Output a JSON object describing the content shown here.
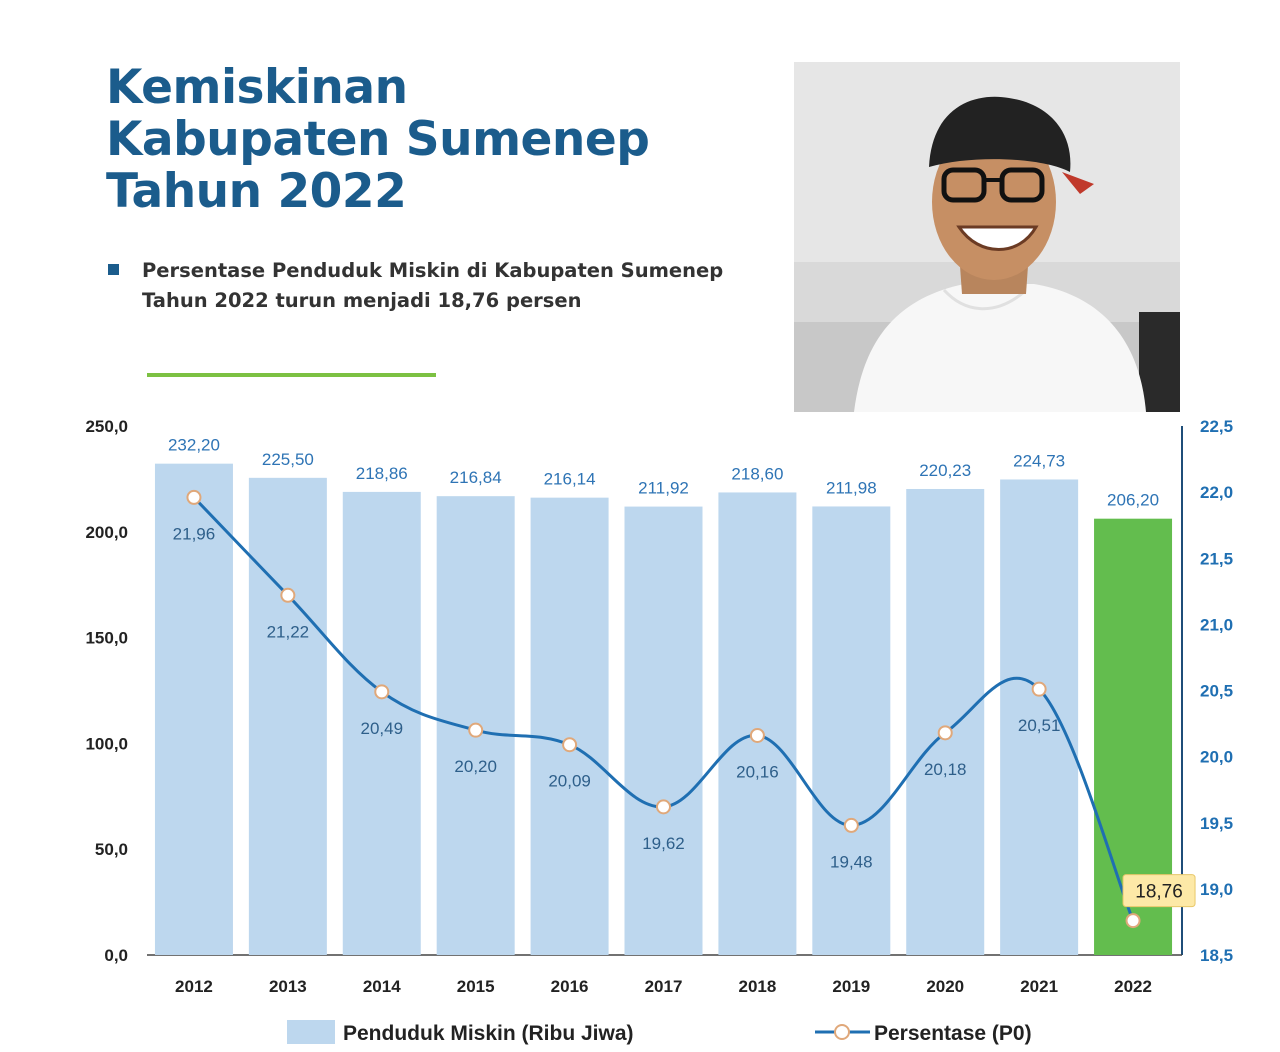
{
  "title_lines": [
    "Kemiskinan",
    "Kabupaten Sumenep",
    "Tahun 2022"
  ],
  "note": "Persentase Penduduk Miskin di Kabupaten Sumenep Tahun 2022 turun menjadi 18,76 persen",
  "colors": {
    "title": "#1b5c8c",
    "bar": "#bdd7ee",
    "bar_highlight": "#63bd4e",
    "line": "#1f6fb2",
    "value_label": "#2e74b5",
    "highlight_label_bg": "#fde9a7",
    "green_rule": "#7cc142"
  },
  "chart_data": {
    "type": "bar",
    "categories": [
      "2012",
      "2013",
      "2014",
      "2015",
      "2016",
      "2017",
      "2018",
      "2019",
      "2020",
      "2021",
      "2022"
    ],
    "series": [
      {
        "name": "Penduduk Miskin (Ribu Jiwa)",
        "type": "bar",
        "axis": "left",
        "values": [
          232.2,
          225.5,
          218.86,
          216.84,
          216.14,
          211.92,
          218.6,
          211.98,
          220.23,
          224.73,
          206.2
        ],
        "labels": [
          "232,20",
          "225,50",
          "218,86",
          "216,84",
          "216,14",
          "211,92",
          "218,60",
          "211,98",
          "220,23",
          "224,73",
          "206,20"
        ],
        "highlight_index": 10
      },
      {
        "name": "Persentase (P0)",
        "type": "line",
        "axis": "right",
        "values": [
          21.96,
          21.22,
          20.49,
          20.2,
          20.09,
          19.62,
          20.16,
          19.48,
          20.18,
          20.51,
          18.76
        ],
        "labels": [
          "21,96",
          "21,22",
          "20,49",
          "20,20",
          "20,09",
          "19,62",
          "20,16",
          "19,48",
          "20,18",
          "20,51",
          "18,76"
        ],
        "highlight_index": 10
      }
    ],
    "y_left": {
      "range": [
        0,
        250
      ],
      "ticks": [
        "0,0",
        "50,0",
        "100,0",
        "150,0",
        "200,0",
        "250,0"
      ]
    },
    "y_right": {
      "range": [
        18.5,
        22.5
      ],
      "ticks": [
        "18,5",
        "19,0",
        "19,5",
        "20,0",
        "20,5",
        "21,0",
        "21,5",
        "22,0",
        "22,5"
      ]
    },
    "legend_position": "bottom",
    "grid": false
  }
}
